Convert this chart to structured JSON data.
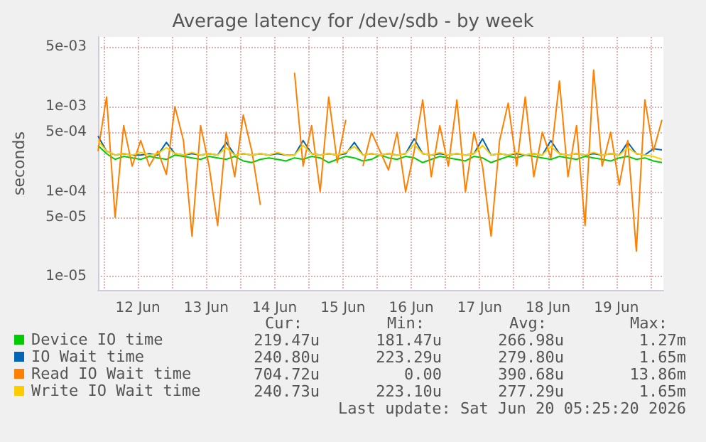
{
  "chart_data": {
    "type": "line",
    "title": "Average latency for /dev/sdb - by week",
    "ylabel": "seconds",
    "log": "y",
    "grid": true,
    "legend": "bottom left",
    "marker": "none",
    "line_style": "solid",
    "x": [
      "2026-06-11T22:00",
      "2026-06-12T01:00",
      "2026-06-12T04:00",
      "2026-06-12T07:00",
      "2026-06-12T10:00",
      "2026-06-12T13:00",
      "2026-06-12T16:00",
      "2026-06-12T19:00",
      "2026-06-12T22:00",
      "2026-06-13T01:00",
      "2026-06-13T04:00",
      "2026-06-13T07:00",
      "2026-06-13T10:00",
      "2026-06-13T13:00",
      "2026-06-13T16:00",
      "2026-06-13T19:00",
      "2026-06-13T22:00",
      "2026-06-14T01:00",
      "2026-06-14T04:00",
      "2026-06-14T07:00",
      "2026-06-14T10:00",
      "2026-06-14T13:00",
      "2026-06-14T16:00",
      "2026-06-14T19:00",
      "2026-06-14T22:00",
      "2026-06-15T01:00",
      "2026-06-15T04:00",
      "2026-06-15T07:00",
      "2026-06-15T10:00",
      "2026-06-15T13:00",
      "2026-06-15T16:00",
      "2026-06-15T19:00",
      "2026-06-15T22:00",
      "2026-06-16T01:00",
      "2026-06-16T04:00",
      "2026-06-16T07:00",
      "2026-06-16T10:00",
      "2026-06-16T13:00",
      "2026-06-16T16:00",
      "2026-06-16T19:00",
      "2026-06-16T22:00",
      "2026-06-17T01:00",
      "2026-06-17T04:00",
      "2026-06-17T07:00",
      "2026-06-17T10:00",
      "2026-06-17T13:00",
      "2026-06-17T16:00",
      "2026-06-17T19:00",
      "2026-06-17T22:00",
      "2026-06-18T01:00",
      "2026-06-18T04:00",
      "2026-06-18T07:00",
      "2026-06-18T10:00",
      "2026-06-18T13:00",
      "2026-06-18T16:00",
      "2026-06-18T19:00",
      "2026-06-18T22:00",
      "2026-06-19T01:00",
      "2026-06-19T04:00",
      "2026-06-19T07:00",
      "2026-06-19T10:00",
      "2026-06-19T13:00",
      "2026-06-19T16:00",
      "2026-06-19T19:00",
      "2026-06-19T22:00",
      "2026-06-20T01:00",
      "2026-06-20T04:00"
    ],
    "xlim": [
      "2026-06-11T22:00",
      "2026-06-20T04:30"
    ],
    "xticks": [
      {
        "value": "2026-06-12T00:00",
        "label": null
      },
      {
        "value": "2026-06-12T12:00",
        "label": "12 Jun"
      },
      {
        "value": "2026-06-13T00:00",
        "label": null
      },
      {
        "value": "2026-06-13T12:00",
        "label": "13 Jun"
      },
      {
        "value": "2026-06-14T00:00",
        "label": null
      },
      {
        "value": "2026-06-14T12:00",
        "label": "14 Jun"
      },
      {
        "value": "2026-06-15T00:00",
        "label": null
      },
      {
        "value": "2026-06-15T12:00",
        "label": "15 Jun"
      },
      {
        "value": "2026-06-16T00:00",
        "label": null
      },
      {
        "value": "2026-06-16T12:00",
        "label": "16 Jun"
      },
      {
        "value": "2026-06-17T00:00",
        "label": null
      },
      {
        "value": "2026-06-17T12:00",
        "label": "17 Jun"
      },
      {
        "value": "2026-06-18T00:00",
        "label": null
      },
      {
        "value": "2026-06-18T12:00",
        "label": "18 Jun"
      },
      {
        "value": "2026-06-19T00:00",
        "label": null
      },
      {
        "value": "2026-06-19T12:00",
        "label": "19 Jun"
      },
      {
        "value": "2026-06-20T00:00",
        "label": null
      }
    ],
    "ylim": [
      7e-06,
      0.0066
    ],
    "yticks": [
      {
        "value": 1e-05,
        "label": "1e-05"
      },
      {
        "value": 5e-05,
        "label": "5e-05"
      },
      {
        "value": 0.0001,
        "label": "1e-04"
      },
      {
        "value": 0.0005,
        "label": "5e-04"
      },
      {
        "value": 0.001,
        "label": "1e-03"
      },
      {
        "value": 0.005,
        "label": "5e-03"
      }
    ],
    "series": [
      {
        "name": "Device IO time",
        "color": "#00cc00",
        "values": [
          0.00035,
          0.00028,
          0.00024,
          0.00026,
          0.00025,
          0.00024,
          0.00026,
          0.00025,
          0.00024,
          0.00027,
          0.00026,
          0.00025,
          0.00024,
          0.00026,
          0.00025,
          0.00024,
          0.00026,
          0.00023,
          0.00022,
          0.00024,
          0.00025,
          0.00024,
          0.00023,
          0.00025,
          0.00024,
          0.00026,
          0.00025,
          0.00022,
          0.00024,
          0.00026,
          0.00025,
          0.00023,
          0.00024,
          0.00027,
          0.00025,
          0.00024,
          0.00026,
          0.00025,
          0.00022,
          0.00024,
          0.00026,
          0.00025,
          0.00024,
          0.00023,
          0.00026,
          0.00025,
          0.00022,
          0.00024,
          0.00026,
          0.00025,
          0.00027,
          0.00026,
          0.00025,
          0.00024,
          0.00026,
          0.00025,
          0.00024,
          0.00026,
          0.00025,
          0.00024,
          0.00023,
          0.00025,
          0.00026,
          0.00024,
          0.00025,
          0.00023,
          0.00022
        ]
      },
      {
        "name": "IO Wait time",
        "color": "#0066b3",
        "values": [
          0.00045,
          0.0003,
          0.00027,
          0.00028,
          0.00027,
          0.00027,
          0.00028,
          0.00027,
          0.00038,
          0.00028,
          0.00027,
          0.00028,
          0.00027,
          0.00028,
          0.00027,
          0.00038,
          0.00027,
          0.00028,
          0.00027,
          0.00028,
          0.00027,
          0.00028,
          0.00027,
          0.00027,
          0.0004,
          0.00028,
          0.00027,
          0.00028,
          0.00027,
          0.00028,
          0.00038,
          0.00027,
          0.00028,
          0.00027,
          0.00028,
          0.00027,
          0.00028,
          0.00042,
          0.00028,
          0.00027,
          0.00028,
          0.00027,
          0.00028,
          0.00027,
          0.00028,
          0.00042,
          0.00027,
          0.00028,
          0.00027,
          0.00028,
          0.00027,
          0.00028,
          0.00027,
          0.0004,
          0.00028,
          0.00027,
          0.00028,
          0.00027,
          0.00028,
          0.00027,
          0.00028,
          0.00027,
          0.00038,
          0.00028,
          0.00027,
          0.00032,
          0.00031
        ]
      },
      {
        "name": "Read IO Wait time",
        "color": "#ff8000",
        "values": [
          0.0003,
          0.0013,
          5e-05,
          0.0006,
          0.0002,
          0.0004,
          0.0002,
          0.0003,
          0.00016,
          0.001,
          0.0004,
          3e-05,
          0.0006,
          0.0002,
          4e-05,
          0.0005,
          0.00015,
          0.0008,
          0.0003,
          7e-05,
          null,
          null,
          null,
          0.0025,
          0.0002,
          0.0006,
          0.0001,
          0.0013,
          0.00022,
          0.0007,
          null,
          0.0002,
          0.0005,
          0.0003,
          0.00018,
          0.0005,
          0.0001,
          0.0003,
          0.0012,
          0.00015,
          0.0006,
          0.0002,
          0.0012,
          0.0001,
          0.0005,
          0.0002,
          3e-05,
          0.0004,
          0.0011,
          0.0002,
          0.0013,
          0.00015,
          0.0005,
          0.00025,
          0.002,
          0.00015,
          0.0006,
          4e-05,
          0.0027,
          0.0002,
          0.0005,
          0.00012,
          0.0004,
          2e-05,
          0.0012,
          0.0003,
          0.0007
        ]
      },
      {
        "name": "Write IO Wait time",
        "color": "#ffcc00",
        "values": [
          0.0004,
          0.0003,
          0.00027,
          0.00028,
          0.00027,
          0.00029,
          0.00027,
          0.00028,
          0.00033,
          0.00028,
          0.00027,
          0.00029,
          0.00027,
          0.00028,
          0.00027,
          0.00033,
          0.00027,
          0.00028,
          0.00027,
          0.00028,
          0.00027,
          0.00029,
          0.00027,
          0.00027,
          0.00035,
          0.00028,
          0.00027,
          0.00028,
          0.00027,
          0.00029,
          0.00034,
          0.00027,
          0.00028,
          0.00027,
          0.00028,
          0.00027,
          0.00028,
          0.00036,
          0.00028,
          0.00027,
          0.00029,
          0.00027,
          0.00028,
          0.00027,
          0.00028,
          0.00035,
          0.00027,
          0.00028,
          0.00027,
          0.00029,
          0.00027,
          0.00028,
          0.00027,
          0.00034,
          0.00028,
          0.00027,
          0.00028,
          0.00027,
          0.00029,
          0.00027,
          0.00028,
          0.00027,
          0.00033,
          0.00028,
          0.00027,
          0.00026,
          0.00024
        ]
      }
    ],
    "annotations": [
      "Cur:",
      "Min:",
      "Avg:",
      "Max:",
      "219.47u",
      "181.47u",
      "266.98u",
      "1.27m",
      "240.80u",
      "223.29u",
      "279.80u",
      "1.65m",
      "704.72u",
      "0.00",
      "390.68u",
      "13.86m",
      "240.73u",
      "223.10u",
      "277.29u",
      "1.65m",
      "Last update: Sat Jun 20 05:25:20 2026"
    ]
  }
}
